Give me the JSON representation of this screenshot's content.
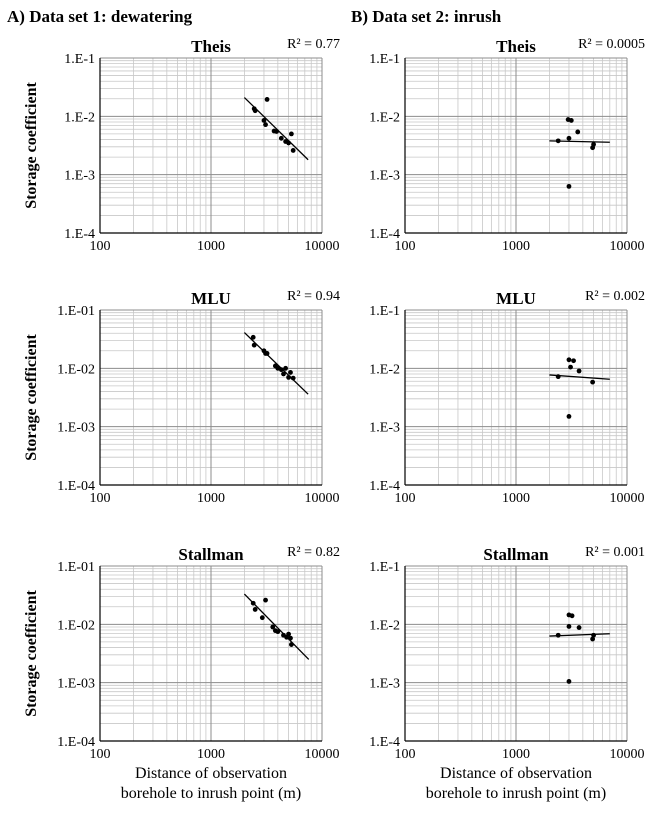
{
  "headings": {
    "left": "A) Data set 1: dewatering",
    "right": "B) Data set 2: inrush"
  },
  "chart_data": [
    {
      "type": "scatter",
      "id": "A1",
      "column": "left",
      "row": 0,
      "title": "Theis",
      "r2_label": "R² = 0.77",
      "ylabel": "Storage coefficient",
      "xlabel": [],
      "xscale": "log",
      "yscale": "log",
      "xlim": [
        100,
        10000
      ],
      "ylim": [
        0.0001,
        0.1
      ],
      "xticks": [
        "100",
        "1000",
        "10000"
      ],
      "yticks": [
        "1.E-4",
        "1.E-3",
        "1.E-2",
        "1.E-1"
      ],
      "points": [
        [
          2450,
          0.0135
        ],
        [
          2500,
          0.0125
        ],
        [
          3000,
          0.0085
        ],
        [
          3100,
          0.0072
        ],
        [
          3200,
          0.0195
        ],
        [
          3700,
          0.0056
        ],
        [
          3900,
          0.0055
        ],
        [
          4300,
          0.0042
        ],
        [
          4700,
          0.0037
        ],
        [
          5000,
          0.0035
        ],
        [
          5300,
          0.005
        ],
        [
          5500,
          0.0026
        ]
      ],
      "trendline": [
        [
          2000,
          0.021
        ],
        [
          7500,
          0.0018
        ]
      ],
      "grid": true
    },
    {
      "type": "scatter",
      "id": "B1",
      "column": "right",
      "row": 0,
      "title": "Theis",
      "r2_label": "R² = 0.0005",
      "ylabel": "",
      "xlabel": [],
      "xscale": "log",
      "yscale": "log",
      "xlim": [
        100,
        10000
      ],
      "ylim": [
        0.0001,
        0.1
      ],
      "xticks": [
        "100",
        "1000",
        "10000"
      ],
      "yticks": [
        "1.E-4",
        "1.E-3",
        "1.E-2",
        "1.E-1"
      ],
      "points": [
        [
          2400,
          0.0038
        ],
        [
          2950,
          0.0088
        ],
        [
          3000,
          0.0042
        ],
        [
          3000,
          0.00063
        ],
        [
          3150,
          0.0085
        ],
        [
          3600,
          0.0054
        ],
        [
          4900,
          0.0029
        ],
        [
          5000,
          0.0033
        ]
      ],
      "trendline": [
        [
          2000,
          0.0038
        ],
        [
          7000,
          0.0036
        ]
      ],
      "grid": true
    },
    {
      "type": "scatter",
      "id": "A2",
      "column": "left",
      "row": 1,
      "title": "MLU",
      "r2_label": "R² = 0.94",
      "ylabel": "Storage coefficient",
      "xlabel": [],
      "xscale": "log",
      "yscale": "log",
      "xlim": [
        100,
        10000
      ],
      "ylim": [
        0.0001,
        0.1
      ],
      "xticks": [
        "100",
        "1000",
        "10000"
      ],
      "yticks": [
        "1.E-04",
        "1.E-03",
        "1.E-02",
        "1.E-01"
      ],
      "points": [
        [
          2400,
          0.034
        ],
        [
          2450,
          0.025
        ],
        [
          3000,
          0.02
        ],
        [
          3100,
          0.018
        ],
        [
          3200,
          0.018
        ],
        [
          3800,
          0.011
        ],
        [
          4000,
          0.01
        ],
        [
          4300,
          0.0095
        ],
        [
          4500,
          0.008
        ],
        [
          4700,
          0.01
        ],
        [
          5000,
          0.007
        ],
        [
          5200,
          0.0085
        ],
        [
          5500,
          0.0068
        ]
      ],
      "trendline": [
        [
          2000,
          0.041
        ],
        [
          7500,
          0.0036
        ]
      ],
      "grid": true
    },
    {
      "type": "scatter",
      "id": "B2",
      "column": "right",
      "row": 1,
      "title": "MLU",
      "r2_label": "R² = 0.002",
      "ylabel": "",
      "xlabel": [],
      "xscale": "log",
      "yscale": "log",
      "xlim": [
        100,
        10000
      ],
      "ylim": [
        0.0001,
        0.1
      ],
      "xticks": [
        "100",
        "1000",
        "10000"
      ],
      "yticks": [
        "1.E-4",
        "1.E-3",
        "1.E-2",
        "1.E-1"
      ],
      "points": [
        [
          2400,
          0.0072
        ],
        [
          3000,
          0.014
        ],
        [
          3000,
          0.0015
        ],
        [
          3100,
          0.0105
        ],
        [
          3300,
          0.0135
        ],
        [
          3700,
          0.009
        ],
        [
          4900,
          0.0058
        ]
      ],
      "trendline": [
        [
          2000,
          0.0077
        ],
        [
          7000,
          0.0065
        ]
      ],
      "grid": true
    },
    {
      "type": "scatter",
      "id": "A3",
      "column": "left",
      "row": 2,
      "title": "Stallman",
      "r2_label": "R² = 0.82",
      "ylabel": "Storage coefficient",
      "xlabel": [
        "Distance of observation",
        "borehole to inrush point (m)"
      ],
      "xscale": "log",
      "yscale": "log",
      "xlim": [
        100,
        10000
      ],
      "ylim": [
        0.0001,
        0.1
      ],
      "xticks": [
        "100",
        "1000",
        "10000"
      ],
      "yticks": [
        "1.E-04",
        "1.E-03",
        "1.E-02",
        "1.E-01"
      ],
      "points": [
        [
          2400,
          0.023
        ],
        [
          2500,
          0.018
        ],
        [
          2900,
          0.013
        ],
        [
          3100,
          0.026
        ],
        [
          3600,
          0.009
        ],
        [
          3800,
          0.0078
        ],
        [
          4000,
          0.0075
        ],
        [
          4500,
          0.0065
        ],
        [
          4800,
          0.006
        ],
        [
          5000,
          0.0068
        ],
        [
          5200,
          0.0058
        ],
        [
          5300,
          0.0045
        ]
      ],
      "trendline": [
        [
          2000,
          0.033
        ],
        [
          7600,
          0.0025
        ]
      ],
      "grid": true
    },
    {
      "type": "scatter",
      "id": "B3",
      "column": "right",
      "row": 2,
      "title": "Stallman",
      "r2_label": "R² = 0.001",
      "ylabel": "",
      "xlabel": [
        "Distance of observation",
        "borehole to inrush point (m)"
      ],
      "xscale": "log",
      "yscale": "log",
      "xlim": [
        100,
        10000
      ],
      "ylim": [
        0.0001,
        0.1
      ],
      "xticks": [
        "100",
        "1000",
        "10000"
      ],
      "yticks": [
        "1.E-4",
        "1.E-3",
        "1.E-2",
        "1.E-1"
      ],
      "points": [
        [
          2400,
          0.0065
        ],
        [
          3000,
          0.0145
        ],
        [
          3000,
          0.0092
        ],
        [
          3000,
          0.00105
        ],
        [
          3200,
          0.014
        ],
        [
          3700,
          0.0088
        ],
        [
          4900,
          0.0056
        ],
        [
          5000,
          0.0065
        ]
      ],
      "trendline": [
        [
          2000,
          0.0063
        ],
        [
          7000,
          0.0069
        ]
      ],
      "grid": true
    }
  ]
}
